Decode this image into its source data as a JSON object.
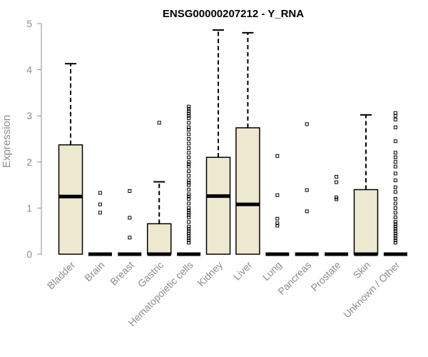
{
  "chart_data": {
    "type": "boxplot",
    "title": "ENSG00000207212 - Y_RNA",
    "ylabel": "Expression",
    "xlabel": "",
    "ylim": [
      0,
      5
    ],
    "yticks": [
      0,
      1,
      2,
      3,
      4,
      5
    ],
    "fill_color": "#ede8d0",
    "median_color": "#000000",
    "categories": [
      "Bladder",
      "Brain",
      "Breast",
      "Gastric",
      "Hematopoietic cells",
      "Kidney",
      "Liver",
      "Lung",
      "Pancreas",
      "Prostate",
      "Skin",
      "Unknown / Other"
    ],
    "boxes": [
      {
        "q1": 0,
        "median": 1.25,
        "q3": 2.37,
        "whisker_low": 0,
        "whisker_high": 4.13,
        "outliers": []
      },
      {
        "q1": 0,
        "median": 0,
        "q3": 0,
        "whisker_low": 0,
        "whisker_high": 0,
        "outliers": [
          1.33,
          1.08,
          0.9
        ]
      },
      {
        "q1": 0,
        "median": 0,
        "q3": 0,
        "whisker_low": 0,
        "whisker_high": 0,
        "outliers": [
          1.37,
          0.79,
          0.36
        ]
      },
      {
        "q1": 0,
        "median": 0,
        "q3": 0.66,
        "whisker_low": 0,
        "whisker_high": 1.57,
        "outliers": [
          2.85
        ]
      },
      {
        "q1": 0,
        "median": 0,
        "q3": 0,
        "whisker_low": 0,
        "whisker_high": 0,
        "outliers": [
          3.2,
          3.15,
          3.1,
          3.05,
          3.0,
          2.95,
          2.85,
          2.75,
          2.7,
          2.6,
          2.5,
          2.4,
          2.3,
          2.2,
          2.1,
          2.0,
          1.95,
          1.9,
          1.8,
          1.7,
          1.6,
          1.55,
          1.5,
          1.4,
          1.3,
          1.25,
          1.2,
          1.1,
          1.0,
          0.95,
          0.9,
          0.85,
          0.8,
          0.7,
          0.6,
          0.55,
          0.5,
          0.45,
          0.4,
          0.35,
          0.3,
          0.25
        ]
      },
      {
        "q1": 0,
        "median": 1.26,
        "q3": 2.1,
        "whisker_low": 0,
        "whisker_high": 4.86,
        "outliers": []
      },
      {
        "q1": 0,
        "median": 1.08,
        "q3": 2.74,
        "whisker_low": 0,
        "whisker_high": 4.8,
        "outliers": []
      },
      {
        "q1": 0,
        "median": 0,
        "q3": 0,
        "whisker_low": 0,
        "whisker_high": 0,
        "outliers": [
          2.13,
          1.28,
          0.77,
          0.67,
          0.62
        ]
      },
      {
        "q1": 0,
        "median": 0,
        "q3": 0,
        "whisker_low": 0,
        "whisker_high": 0,
        "outliers": [
          2.82,
          1.39,
          0.93
        ]
      },
      {
        "q1": 0,
        "median": 0,
        "q3": 0,
        "whisker_low": 0,
        "whisker_high": 0,
        "outliers": [
          1.68,
          1.56,
          1.23,
          1.19
        ]
      },
      {
        "q1": 0,
        "median": 0,
        "q3": 1.4,
        "whisker_low": 0,
        "whisker_high": 3.02,
        "outliers": []
      },
      {
        "q1": 0,
        "median": 0,
        "q3": 0,
        "whisker_low": 0,
        "whisker_high": 0,
        "outliers": [
          3.06,
          3.0,
          2.92,
          2.75,
          2.45,
          2.2,
          2.1,
          2.0,
          1.9,
          1.75,
          1.6,
          1.45,
          1.35,
          1.2,
          1.1,
          1.0,
          0.9,
          0.8,
          0.7,
          0.65,
          0.6,
          0.55,
          0.5,
          0.45,
          0.4,
          0.35,
          0.3,
          0.25
        ]
      }
    ]
  }
}
